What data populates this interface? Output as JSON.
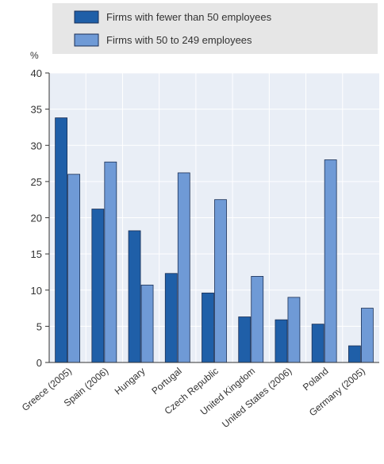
{
  "chart_data": {
    "type": "bar",
    "title": "",
    "xlabel": "",
    "ylabel": "%",
    "ylim": [
      0,
      40
    ],
    "yticks": [
      0,
      5,
      10,
      15,
      20,
      25,
      30,
      35,
      40
    ],
    "grid": true,
    "legend_position": "top",
    "categories": [
      "Greece (2005)",
      "Spain (2006)",
      "Hungary",
      "Portugal",
      "Czech Republic",
      "United Kingdom",
      "United States (2006)",
      "Poland",
      "Germany (2005)"
    ],
    "series": [
      {
        "name": "Firms with fewer than 50 employees",
        "color": "#1f5fa8",
        "values": [
          33.8,
          21.2,
          18.2,
          12.3,
          9.6,
          6.3,
          5.9,
          5.3,
          2.3
        ]
      },
      {
        "name": "Firms with 50 to 249 employees",
        "color": "#6f9ad6",
        "values": [
          26.0,
          27.7,
          10.7,
          26.2,
          22.5,
          11.9,
          9.0,
          28.0,
          7.5
        ]
      }
    ],
    "colors": {
      "plot_background": "#e9eef6",
      "grid": "#ffffff",
      "legend_background": "#e6e6e6",
      "bar_edge": "#1a2f55"
    }
  }
}
